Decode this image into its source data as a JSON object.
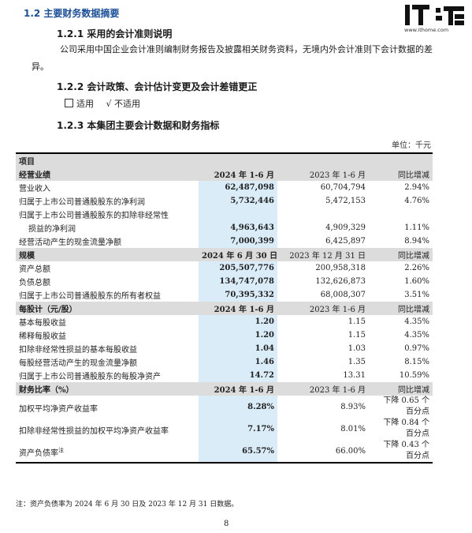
{
  "logo": {
    "mark": "IT之家",
    "url": "www.ithome.com"
  },
  "headings": {
    "h12": "1.2 主要财务数据摘要",
    "h121": "1.2.1 采用的会计准则说明",
    "h122": "1.2.2 会计政策、会计估计变更及会计差错更正",
    "h123": "1.2.3 本集团主要会计数据和财务指标"
  },
  "para": "公司采用中国企业会计准则编制财务报告及披露相关财务资料，无境内外会计准则下会计数据的差异。",
  "choice": {
    "opt1": "适用",
    "check": "√",
    "opt2": "不适用"
  },
  "unit": "单位：千元",
  "table": {
    "item_header": "项目",
    "sections": [
      {
        "header": [
          "经营业绩",
          "2024 年 1-6 月",
          "2023 年 1-6 月",
          "同比增减"
        ],
        "rows": [
          {
            "label": "营业收入",
            "v1": "62,487,098",
            "v2": "60,704,794",
            "v3": "2.94%"
          },
          {
            "label": "归属于上市公司普通股股东的净利润",
            "v1": "5,732,446",
            "v2": "5,472,153",
            "v3": "4.76%"
          },
          {
            "label": "归属于上市公司普通股股东的扣除非经常性",
            "label2": "损益的净利润",
            "v1": "4,963,643",
            "v2": "4,909,329",
            "v3": "1.11%"
          },
          {
            "label": "经营活动产生的现金流量净额",
            "v1": "7,000,399",
            "v2": "6,425,897",
            "v3": "8.94%"
          }
        ]
      },
      {
        "header": [
          "规模",
          "2024 年 6 月 30 日",
          "2023 年 12 月 31 日",
          "同比增减"
        ],
        "rows": [
          {
            "label": "资产总额",
            "v1": "205,507,776",
            "v2": "200,958,318",
            "v3": "2.26%"
          },
          {
            "label": "负债总额",
            "v1": "134,747,078",
            "v2": "132,626,873",
            "v3": "1.60%"
          },
          {
            "label": "归属于上市公司普通股股东的所有者权益",
            "v1": "70,395,332",
            "v2": "68,008,307",
            "v3": "3.51%"
          }
        ]
      },
      {
        "header": [
          "每股计（元/股）",
          "2024 年 1-6 月",
          "2023 年 1-6 月",
          "同比增减"
        ],
        "rows": [
          {
            "label": "基本每股收益",
            "v1": "1.20",
            "v2": "1.15",
            "v3": "4.35%"
          },
          {
            "label": "稀释每股收益",
            "v1": "1.20",
            "v2": "1.15",
            "v3": "4.35%"
          },
          {
            "label": "扣除非经常性损益的基本每股收益",
            "v1": "1.04",
            "v2": "1.03",
            "v3": "0.97%"
          },
          {
            "label": "每股经营活动产生的现金流量净额",
            "v1": "1.46",
            "v2": "1.35",
            "v3": "8.15%"
          },
          {
            "label": "归属于上市公司普通股股东的每股净资产",
            "v1": "14.72",
            "v2": "13.31",
            "v3": "10.59%"
          }
        ]
      },
      {
        "header": [
          "财务比率（%）",
          "2024 年 1-6 月",
          "2023 年 1-6 月",
          "同比增减"
        ],
        "rows": [
          {
            "label": "加权平均净资产收益率",
            "v1": "8.28%",
            "v2": "8.93%",
            "v3a": "下降 0.65 个",
            "v3b": "百分点"
          },
          {
            "label": "扣除非经常性损益的加权平均净资产收益率",
            "v1": "7.17%",
            "v2": "8.01%",
            "v3a": "下降 0.84 个",
            "v3b": "百分点"
          },
          {
            "label": "资产负债率",
            "sup": "注",
            "v1": "65.57%",
            "v2": "66.00%",
            "v3a": "下降 0.43 个",
            "v3b": "百分点"
          }
        ]
      }
    ]
  },
  "footnote": "注：资产负债率为 2024 年 6 月 30 日及 2023 年 12 月 31 日数据。",
  "page_number": "8",
  "colors": {
    "heading_blue": "#1a4f9a",
    "highlight": "#d9ecf8",
    "header_grey": "#dcdcdc"
  }
}
